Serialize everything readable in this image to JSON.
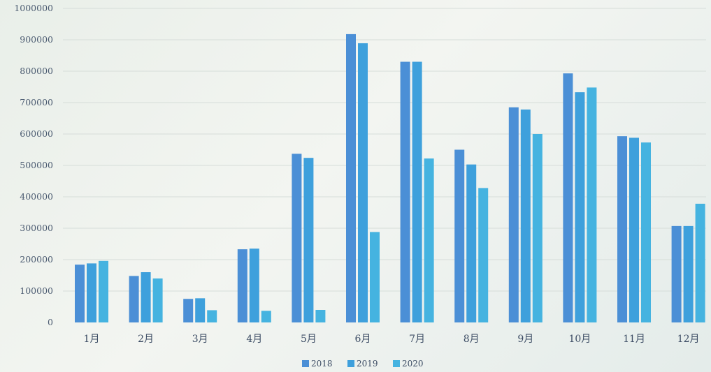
{
  "chart_data": {
    "type": "bar",
    "categories": [
      "1月",
      "2月",
      "3月",
      "4月",
      "5月",
      "6月",
      "7月",
      "8月",
      "9月",
      "10月",
      "11月",
      "12月"
    ],
    "series": [
      {
        "name": "2018",
        "color": "#4b8fd6",
        "values": [
          184000,
          148000,
          75000,
          233000,
          537000,
          918000,
          830000,
          550000,
          685000,
          793000,
          593000,
          307000
        ]
      },
      {
        "name": "2019",
        "color": "#3ea0dc",
        "values": [
          188000,
          160000,
          77000,
          235000,
          524000,
          889000,
          830000,
          503000,
          678000,
          733000,
          588000,
          307000
        ]
      },
      {
        "name": "2020",
        "color": "#45b3e0",
        "values": [
          196000,
          140000,
          39000,
          37000,
          40000,
          288000,
          522000,
          428000,
          600000,
          748000,
          573000,
          378000
        ]
      }
    ],
    "ylim": [
      0,
      1000000
    ],
    "yticks": [
      "0",
      "100000",
      "200000",
      "300000",
      "400000",
      "500000",
      "600000",
      "700000",
      "800000",
      "900000",
      "1000000"
    ],
    "grid": true,
    "legend_position": "bottom"
  }
}
